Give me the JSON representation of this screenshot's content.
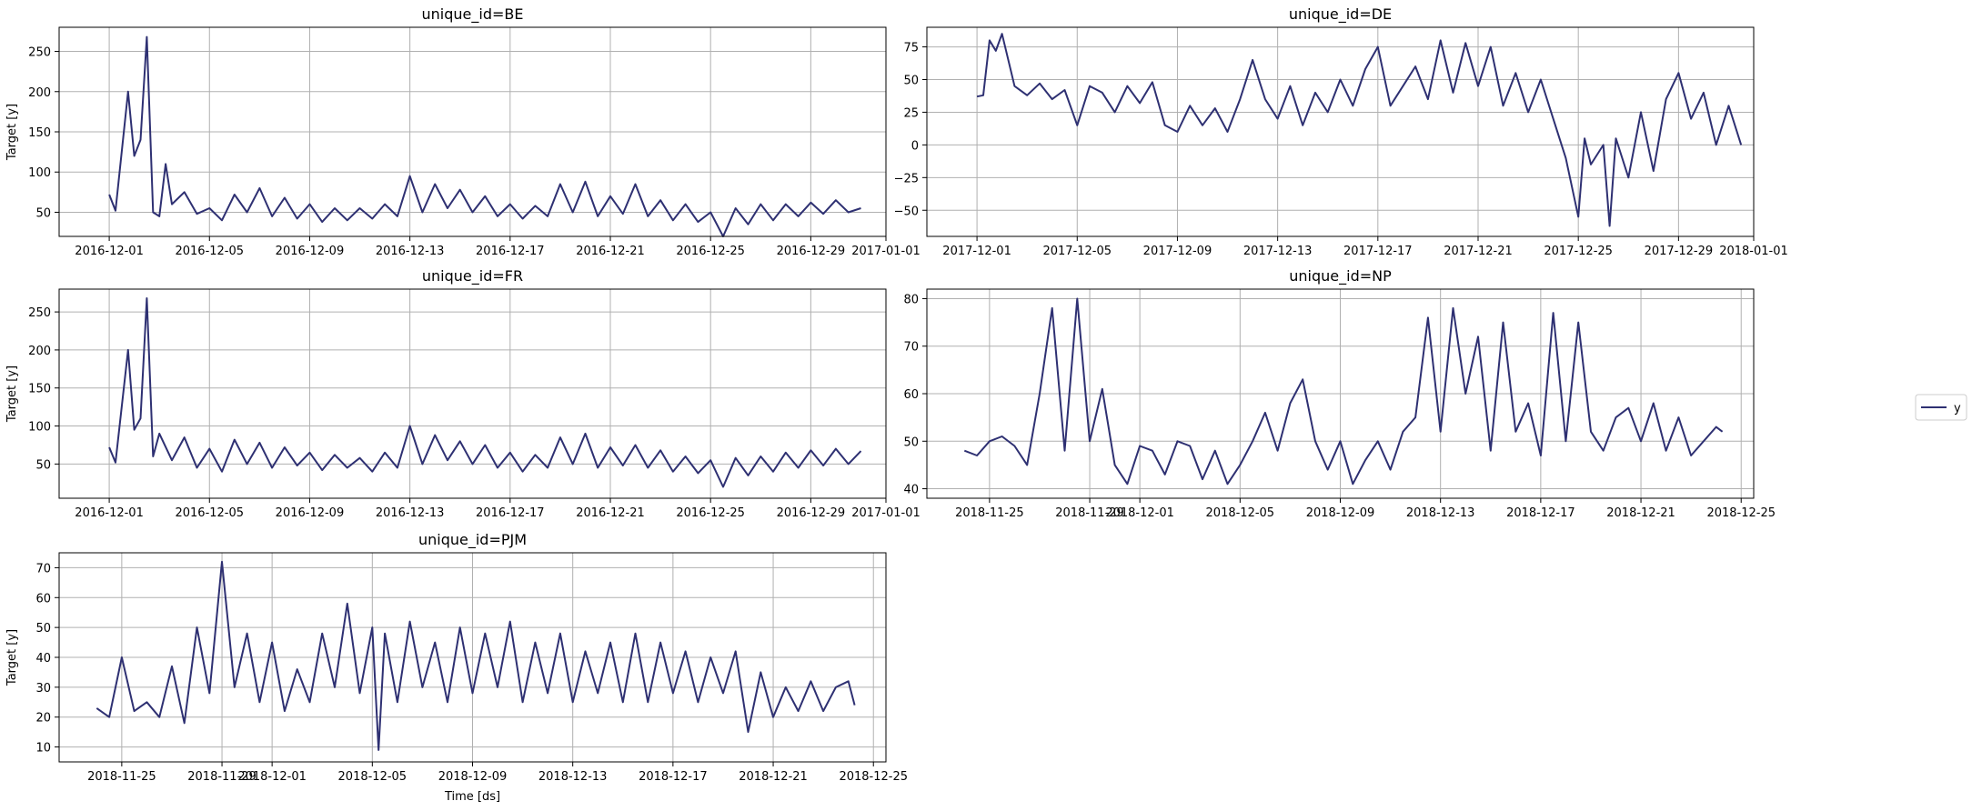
{
  "figure": {
    "legend": {
      "entries": [
        {
          "label": "y",
          "color": "#2e3072"
        }
      ],
      "placement": "right"
    }
  },
  "chart_data": [
    {
      "type": "line",
      "title": "unique_id=BE",
      "ylabel": "Target [y]",
      "xlabel": "",
      "xlim": [
        "2016-11-29",
        "2017-01-01"
      ],
      "ylim": [
        20,
        280
      ],
      "xticks": [
        "2016-12-01",
        "2016-12-05",
        "2016-12-09",
        "2016-12-13",
        "2016-12-17",
        "2016-12-21",
        "2016-12-25",
        "2016-12-29",
        "2017-01-01"
      ],
      "yticks": [
        50,
        100,
        150,
        200,
        250
      ],
      "grid": true,
      "series": [
        {
          "name": "y",
          "color": "#2e3072",
          "x": [
            "2016-12-01",
            "2016-12-01 06:00",
            "2016-12-01 18:00",
            "2016-12-02",
            "2016-12-02 06:00",
            "2016-12-02 12:00",
            "2016-12-02 18:00",
            "2016-12-03",
            "2016-12-03 06:00",
            "2016-12-03 12:00",
            "2016-12-04",
            "2016-12-04 12:00",
            "2016-12-05",
            "2016-12-05 12:00",
            "2016-12-06",
            "2016-12-06 12:00",
            "2016-12-07",
            "2016-12-07 12:00",
            "2016-12-08",
            "2016-12-08 12:00",
            "2016-12-09",
            "2016-12-09 12:00",
            "2016-12-10",
            "2016-12-10 12:00",
            "2016-12-11",
            "2016-12-11 12:00",
            "2016-12-12",
            "2016-12-12 12:00",
            "2016-12-13",
            "2016-12-13 12:00",
            "2016-12-14",
            "2016-12-14 12:00",
            "2016-12-15",
            "2016-12-15 12:00",
            "2016-12-16",
            "2016-12-16 12:00",
            "2016-12-17",
            "2016-12-17 12:00",
            "2016-12-18",
            "2016-12-18 12:00",
            "2016-12-19",
            "2016-12-19 12:00",
            "2016-12-20",
            "2016-12-20 12:00",
            "2016-12-21",
            "2016-12-21 12:00",
            "2016-12-22",
            "2016-12-22 12:00",
            "2016-12-23",
            "2016-12-23 12:00",
            "2016-12-24",
            "2016-12-24 12:00",
            "2016-12-25",
            "2016-12-25 12:00",
            "2016-12-26",
            "2016-12-26 12:00",
            "2016-12-27",
            "2016-12-27 12:00",
            "2016-12-28",
            "2016-12-28 12:00",
            "2016-12-29",
            "2016-12-29 12:00",
            "2016-12-30",
            "2016-12-30 12:00",
            "2016-12-31"
          ],
          "y": [
            72,
            52,
            200,
            120,
            140,
            268,
            50,
            45,
            110,
            60,
            75,
            48,
            55,
            40,
            72,
            50,
            80,
            45,
            68,
            42,
            60,
            38,
            55,
            40,
            55,
            42,
            60,
            45,
            95,
            50,
            85,
            55,
            78,
            50,
            70,
            45,
            60,
            42,
            58,
            45,
            85,
            50,
            88,
            45,
            70,
            48,
            85,
            45,
            65,
            40,
            60,
            38,
            50,
            20,
            55,
            35,
            60,
            40,
            60,
            45,
            62,
            48,
            65,
            50,
            55
          ]
        }
      ]
    },
    {
      "type": "line",
      "title": "unique_id=DE",
      "ylabel": "",
      "xlabel": "",
      "xlim": [
        "2017-11-29",
        "2018-01-01"
      ],
      "ylim": [
        -70,
        90
      ],
      "xticks": [
        "2017-12-01",
        "2017-12-05",
        "2017-12-09",
        "2017-12-13",
        "2017-12-17",
        "2017-12-21",
        "2017-12-25",
        "2017-12-29",
        "2018-01-01"
      ],
      "yticks": [
        -50,
        -25,
        0,
        25,
        50,
        75
      ],
      "grid": true,
      "series": [
        {
          "name": "y",
          "color": "#2e3072",
          "x": [
            "2017-12-01",
            "2017-12-01 06:00",
            "2017-12-01 12:00",
            "2017-12-01 18:00",
            "2017-12-02",
            "2017-12-02 12:00",
            "2017-12-03",
            "2017-12-03 12:00",
            "2017-12-04",
            "2017-12-04 12:00",
            "2017-12-05",
            "2017-12-05 12:00",
            "2017-12-06",
            "2017-12-06 12:00",
            "2017-12-07",
            "2017-12-07 12:00",
            "2017-12-08",
            "2017-12-08 12:00",
            "2017-12-09",
            "2017-12-09 12:00",
            "2017-12-10",
            "2017-12-10 12:00",
            "2017-12-11",
            "2017-12-11 12:00",
            "2017-12-12",
            "2017-12-12 12:00",
            "2017-12-13",
            "2017-12-13 12:00",
            "2017-12-14",
            "2017-12-14 12:00",
            "2017-12-15",
            "2017-12-15 12:00",
            "2017-12-16",
            "2017-12-16 12:00",
            "2017-12-17",
            "2017-12-17 12:00",
            "2017-12-18",
            "2017-12-18 12:00",
            "2017-12-19",
            "2017-12-19 12:00",
            "2017-12-20",
            "2017-12-20 12:00",
            "2017-12-21",
            "2017-12-21 12:00",
            "2017-12-22",
            "2017-12-22 12:00",
            "2017-12-23",
            "2017-12-23 12:00",
            "2017-12-24",
            "2017-12-24 12:00",
            "2017-12-25",
            "2017-12-25 06:00",
            "2017-12-25 12:00",
            "2017-12-26",
            "2017-12-26 06:00",
            "2017-12-26 12:00",
            "2017-12-27",
            "2017-12-27 12:00",
            "2017-12-28",
            "2017-12-28 12:00",
            "2017-12-29",
            "2017-12-29 12:00",
            "2017-12-30",
            "2017-12-30 12:00",
            "2017-12-31",
            "2017-12-31 12:00"
          ],
          "y": [
            37,
            38,
            80,
            72,
            85,
            45,
            38,
            47,
            35,
            42,
            15,
            45,
            40,
            25,
            45,
            32,
            48,
            15,
            10,
            30,
            15,
            28,
            10,
            35,
            65,
            35,
            20,
            45,
            15,
            40,
            25,
            50,
            30,
            58,
            75,
            30,
            45,
            60,
            35,
            80,
            40,
            78,
            45,
            75,
            30,
            55,
            25,
            50,
            20,
            -10,
            -55,
            5,
            -15,
            0,
            -62,
            5,
            -25,
            25,
            -20,
            35,
            55,
            20,
            40,
            0,
            30,
            0
          ]
        }
      ]
    },
    {
      "type": "line",
      "title": "unique_id=FR",
      "ylabel": "Target [y]",
      "xlabel": "",
      "xlim": [
        "2016-11-29",
        "2017-01-01"
      ],
      "ylim": [
        5,
        280
      ],
      "xticks": [
        "2016-12-01",
        "2016-12-05",
        "2016-12-09",
        "2016-12-13",
        "2016-12-17",
        "2016-12-21",
        "2016-12-25",
        "2016-12-29",
        "2017-01-01"
      ],
      "yticks": [
        50,
        100,
        150,
        200,
        250
      ],
      "grid": true,
      "series": [
        {
          "name": "y",
          "color": "#2e3072",
          "x": [
            "2016-12-01",
            "2016-12-01 06:00",
            "2016-12-01 18:00",
            "2016-12-02",
            "2016-12-02 06:00",
            "2016-12-02 12:00",
            "2016-12-02 18:00",
            "2016-12-03",
            "2016-12-03 12:00",
            "2016-12-04",
            "2016-12-04 12:00",
            "2016-12-05",
            "2016-12-05 12:00",
            "2016-12-06",
            "2016-12-06 12:00",
            "2016-12-07",
            "2016-12-07 12:00",
            "2016-12-08",
            "2016-12-08 12:00",
            "2016-12-09",
            "2016-12-09 12:00",
            "2016-12-10",
            "2016-12-10 12:00",
            "2016-12-11",
            "2016-12-11 12:00",
            "2016-12-12",
            "2016-12-12 12:00",
            "2016-12-13",
            "2016-12-13 12:00",
            "2016-12-14",
            "2016-12-14 12:00",
            "2016-12-15",
            "2016-12-15 12:00",
            "2016-12-16",
            "2016-12-16 12:00",
            "2016-12-17",
            "2016-12-17 12:00",
            "2016-12-18",
            "2016-12-18 12:00",
            "2016-12-19",
            "2016-12-19 12:00",
            "2016-12-20",
            "2016-12-20 12:00",
            "2016-12-21",
            "2016-12-21 12:00",
            "2016-12-22",
            "2016-12-22 12:00",
            "2016-12-23",
            "2016-12-23 12:00",
            "2016-12-24",
            "2016-12-24 12:00",
            "2016-12-25",
            "2016-12-25 12:00",
            "2016-12-26",
            "2016-12-26 12:00",
            "2016-12-27",
            "2016-12-27 12:00",
            "2016-12-28",
            "2016-12-28 12:00",
            "2016-12-29",
            "2016-12-29 12:00",
            "2016-12-30",
            "2016-12-30 12:00",
            "2016-12-31"
          ],
          "y": [
            72,
            52,
            200,
            95,
            110,
            268,
            60,
            90,
            55,
            85,
            45,
            70,
            40,
            82,
            50,
            78,
            45,
            72,
            48,
            65,
            42,
            62,
            45,
            58,
            40,
            65,
            45,
            100,
            50,
            88,
            55,
            80,
            50,
            75,
            45,
            65,
            40,
            62,
            45,
            85,
            50,
            90,
            45,
            72,
            48,
            75,
            45,
            68,
            40,
            60,
            38,
            55,
            20,
            58,
            35,
            60,
            40,
            65,
            45,
            68,
            48,
            70,
            50,
            67
          ]
        }
      ]
    },
    {
      "type": "line",
      "title": "unique_id=NP",
      "ylabel": "",
      "xlabel": "",
      "xlim": [
        "2018-11-22 12:00",
        "2018-12-25 12:00"
      ],
      "ylim": [
        38,
        82
      ],
      "xticks": [
        "2018-11-25",
        "2018-11-29",
        "2018-12-01",
        "2018-12-05",
        "2018-12-09",
        "2018-12-13",
        "2018-12-17",
        "2018-12-21",
        "2018-12-25"
      ],
      "yticks": [
        40,
        50,
        60,
        70,
        80
      ],
      "grid": true,
      "series": [
        {
          "name": "y",
          "color": "#2e3072",
          "x": [
            "2018-11-24",
            "2018-11-24 12:00",
            "2018-11-25",
            "2018-11-25 12:00",
            "2018-11-26",
            "2018-11-26 12:00",
            "2018-11-27",
            "2018-11-27 12:00",
            "2018-11-28",
            "2018-11-28 12:00",
            "2018-11-29",
            "2018-11-29 12:00",
            "2018-11-30",
            "2018-11-30 12:00",
            "2018-12-01",
            "2018-12-01 12:00",
            "2018-12-02",
            "2018-12-02 12:00",
            "2018-12-03",
            "2018-12-03 12:00",
            "2018-12-04",
            "2018-12-04 12:00",
            "2018-12-05",
            "2018-12-05 12:00",
            "2018-12-06",
            "2018-12-06 12:00",
            "2018-12-07",
            "2018-12-07 12:00",
            "2018-12-08",
            "2018-12-08 12:00",
            "2018-12-09",
            "2018-12-09 12:00",
            "2018-12-10",
            "2018-12-10 12:00",
            "2018-12-11",
            "2018-12-11 12:00",
            "2018-12-12",
            "2018-12-12 12:00",
            "2018-12-13",
            "2018-12-13 12:00",
            "2018-12-14",
            "2018-12-14 12:00",
            "2018-12-15",
            "2018-12-15 12:00",
            "2018-12-16",
            "2018-12-16 12:00",
            "2018-12-17",
            "2018-12-17 12:00",
            "2018-12-18",
            "2018-12-18 12:00",
            "2018-12-19",
            "2018-12-19 12:00",
            "2018-12-20",
            "2018-12-20 12:00",
            "2018-12-21",
            "2018-12-21 12:00",
            "2018-12-22",
            "2018-12-22 12:00",
            "2018-12-23",
            "2018-12-23 12:00",
            "2018-12-24",
            "2018-12-24 06:00"
          ],
          "y": [
            48,
            47,
            50,
            51,
            49,
            45,
            60,
            78,
            48,
            80,
            50,
            61,
            45,
            41,
            49,
            48,
            43,
            50,
            49,
            42,
            48,
            41,
            45,
            50,
            56,
            48,
            58,
            63,
            50,
            44,
            50,
            41,
            46,
            50,
            44,
            52,
            55,
            76,
            52,
            78,
            60,
            72,
            48,
            75,
            52,
            58,
            47,
            77,
            50,
            75,
            52,
            48,
            55,
            57,
            50,
            58,
            48,
            55,
            47,
            50,
            53,
            52
          ]
        }
      ]
    },
    {
      "type": "line",
      "title": "unique_id=PJM",
      "ylabel": "Target [y]",
      "xlabel": "Time [ds]",
      "xlim": [
        "2018-11-22 12:00",
        "2018-12-25 12:00"
      ],
      "ylim": [
        5,
        75
      ],
      "xticks": [
        "2018-11-25",
        "2018-11-29",
        "2018-12-01",
        "2018-12-05",
        "2018-12-09",
        "2018-12-13",
        "2018-12-17",
        "2018-12-21",
        "2018-12-25"
      ],
      "yticks": [
        10,
        20,
        30,
        40,
        50,
        60,
        70
      ],
      "grid": true,
      "series": [
        {
          "name": "y",
          "color": "#2e3072",
          "x": [
            "2018-11-24",
            "2018-11-24 12:00",
            "2018-11-25",
            "2018-11-25 12:00",
            "2018-11-26",
            "2018-11-26 12:00",
            "2018-11-27",
            "2018-11-27 12:00",
            "2018-11-28",
            "2018-11-28 12:00",
            "2018-11-29",
            "2018-11-29 12:00",
            "2018-11-30",
            "2018-11-30 12:00",
            "2018-12-01",
            "2018-12-01 12:00",
            "2018-12-02",
            "2018-12-02 12:00",
            "2018-12-03",
            "2018-12-03 12:00",
            "2018-12-04",
            "2018-12-04 12:00",
            "2018-12-05",
            "2018-12-05 06:00",
            "2018-12-05 12:00",
            "2018-12-06",
            "2018-12-06 12:00",
            "2018-12-07",
            "2018-12-07 12:00",
            "2018-12-08",
            "2018-12-08 12:00",
            "2018-12-09",
            "2018-12-09 12:00",
            "2018-12-10",
            "2018-12-10 12:00",
            "2018-12-11",
            "2018-12-11 12:00",
            "2018-12-12",
            "2018-12-12 12:00",
            "2018-12-13",
            "2018-12-13 12:00",
            "2018-12-14",
            "2018-12-14 12:00",
            "2018-12-15",
            "2018-12-15 12:00",
            "2018-12-16",
            "2018-12-16 12:00",
            "2018-12-17",
            "2018-12-17 12:00",
            "2018-12-18",
            "2018-12-18 12:00",
            "2018-12-19",
            "2018-12-19 12:00",
            "2018-12-20",
            "2018-12-20 12:00",
            "2018-12-21",
            "2018-12-21 12:00",
            "2018-12-22",
            "2018-12-22 12:00",
            "2018-12-23",
            "2018-12-23 12:00",
            "2018-12-24",
            "2018-12-24 06:00"
          ],
          "y": [
            23,
            20,
            40,
            22,
            25,
            20,
            37,
            18,
            50,
            28,
            72,
            30,
            48,
            25,
            45,
            22,
            36,
            25,
            48,
            30,
            58,
            28,
            50,
            9,
            48,
            25,
            52,
            30,
            45,
            25,
            50,
            28,
            48,
            30,
            52,
            25,
            45,
            28,
            48,
            25,
            42,
            28,
            45,
            25,
            48,
            25,
            45,
            28,
            42,
            25,
            40,
            28,
            42,
            15,
            35,
            20,
            30,
            22,
            32,
            22,
            30,
            32,
            24
          ]
        }
      ]
    }
  ]
}
